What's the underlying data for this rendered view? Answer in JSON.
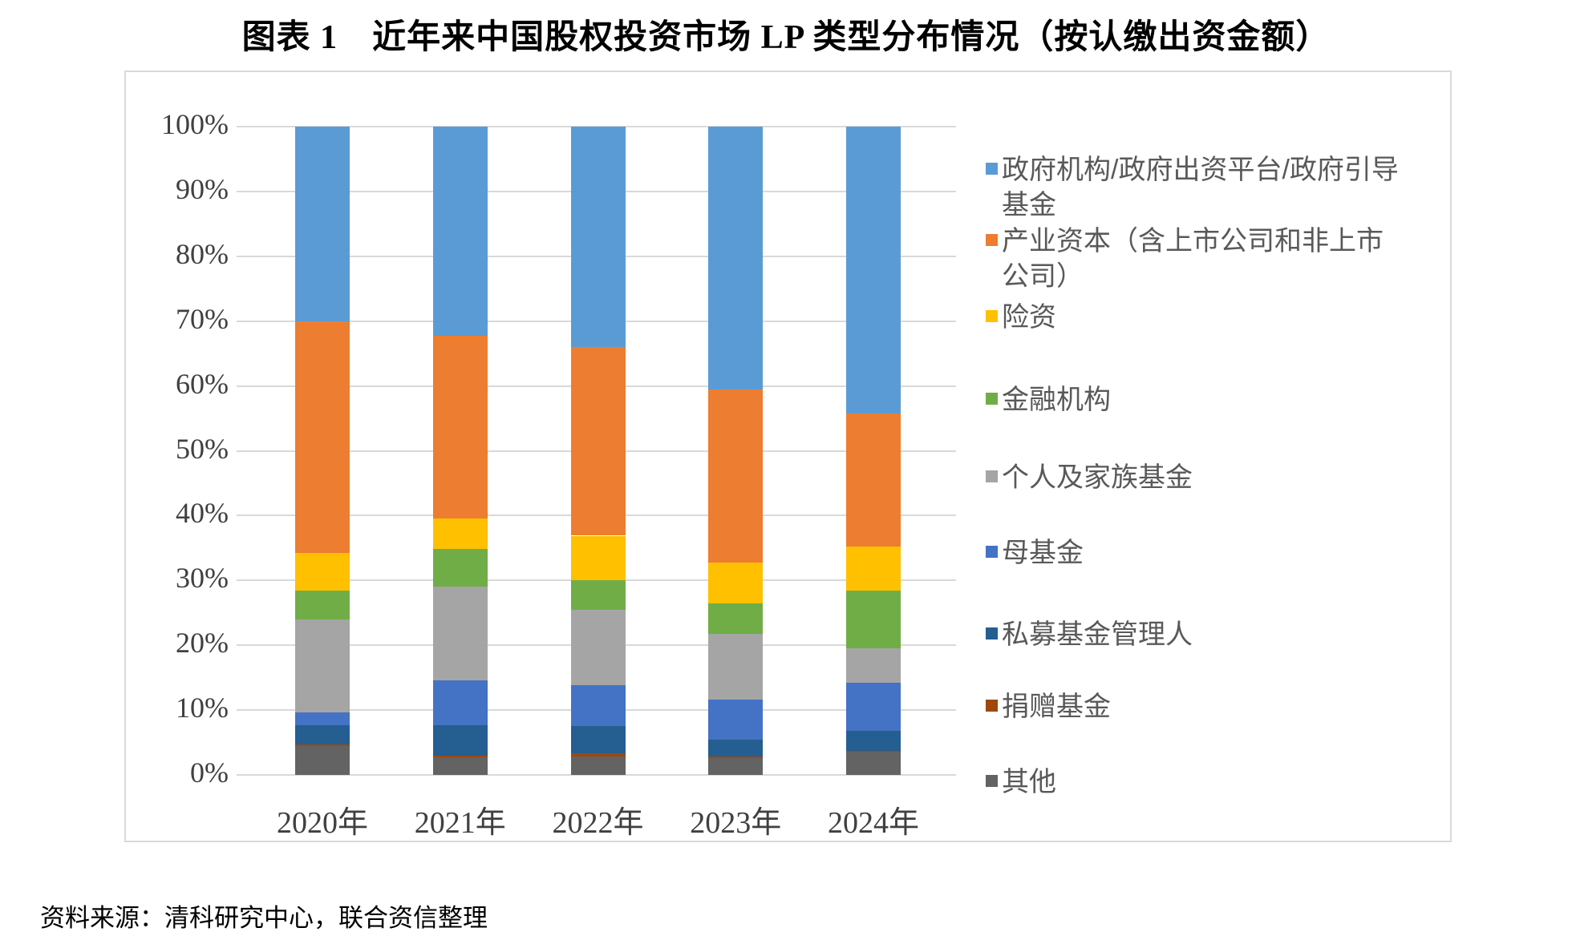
{
  "page": {
    "title": "图表 1　近年来中国股权投资市场 LP 类型分布情况（按认缴出资金额）",
    "source": "资料来源：清科研究中心，联合资信整理"
  },
  "chart_data": {
    "type": "bar",
    "stacked": true,
    "units": "percent",
    "title": "近年来中国股权投资市场LP类型分布情况（按认缴出资金额）",
    "xlabel": "",
    "ylabel": "",
    "ylim": [
      0,
      100
    ],
    "grid": "horizontal",
    "legend_position": "right",
    "yticks": [
      "0%",
      "10%",
      "20%",
      "30%",
      "40%",
      "50%",
      "60%",
      "70%",
      "80%",
      "90%",
      "100%"
    ],
    "categories": [
      "2020年",
      "2021年",
      "2022年",
      "2023年",
      "2024年"
    ],
    "series": [
      {
        "name": "政府机构/政府出资平台/政府引导基金",
        "color": "#5B9BD5",
        "values": [
          30.0,
          32.3,
          34.0,
          40.5,
          44.2
        ]
      },
      {
        "name": "产业资本（含上市公司和非上市公司）",
        "color": "#ED7D31",
        "values": [
          35.8,
          28.2,
          29.1,
          26.7,
          20.6
        ]
      },
      {
        "name": "险资",
        "color": "#FFC000",
        "values": [
          5.8,
          4.6,
          6.8,
          6.3,
          6.8
        ]
      },
      {
        "name": "金融机构",
        "color": "#70AD47",
        "values": [
          4.4,
          5.8,
          4.6,
          4.7,
          8.9
        ]
      },
      {
        "name": "个人及家族基金",
        "color": "#A5A5A5",
        "values": [
          14.3,
          14.5,
          11.7,
          10.2,
          5.3
        ]
      },
      {
        "name": "母基金",
        "color": "#4472C4",
        "values": [
          2.0,
          6.9,
          6.3,
          6.1,
          7.4
        ]
      },
      {
        "name": "私募基金管理人",
        "color": "#255E91",
        "values": [
          3.0,
          4.7,
          4.2,
          2.7,
          3.1
        ]
      },
      {
        "name": "捐赠基金",
        "color": "#9E480E",
        "values": [
          0.3,
          0.3,
          0.4,
          0.2,
          0.1
        ]
      },
      {
        "name": "其他",
        "color": "#636363",
        "values": [
          4.4,
          2.7,
          2.9,
          2.6,
          3.6
        ]
      }
    ],
    "stack_order_note": "first series rendered at top of each bar, last series at bottom"
  }
}
